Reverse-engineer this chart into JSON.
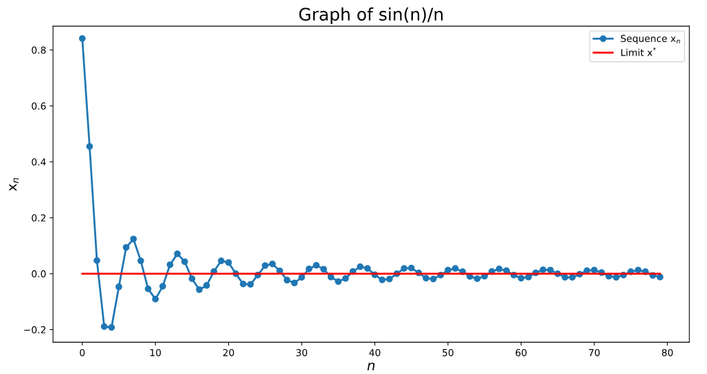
{
  "chart_data": {
    "type": "line",
    "title": "Graph of sin(n)/n",
    "xlabel": "n",
    "ylabel": "x$_{n}$",
    "x": [
      0,
      1,
      2,
      3,
      4,
      5,
      6,
      7,
      8,
      9,
      10,
      11,
      12,
      13,
      14,
      15,
      16,
      17,
      18,
      19,
      20,
      21,
      22,
      23,
      24,
      25,
      26,
      27,
      28,
      29,
      30,
      31,
      32,
      33,
      34,
      35,
      36,
      37,
      38,
      39,
      40,
      41,
      42,
      43,
      44,
      45,
      46,
      47,
      48,
      49,
      50,
      51,
      52,
      53,
      54,
      55,
      56,
      57,
      58,
      59,
      60,
      61,
      62,
      63,
      64,
      65,
      66,
      67,
      68,
      69,
      70,
      71,
      72,
      73,
      74,
      75,
      76,
      77,
      78,
      79
    ],
    "series": [
      {
        "name": "Sequence x$_{n}$",
        "color": "#1f77b4",
        "marker": "circle",
        "values": [
          0.841,
          0.455,
          0.047,
          -0.189,
          -0.192,
          -0.047,
          0.094,
          0.124,
          0.046,
          -0.054,
          -0.091,
          -0.045,
          0.032,
          0.071,
          0.043,
          -0.018,
          -0.057,
          -0.042,
          0.008,
          0.046,
          0.04,
          0.0,
          -0.037,
          -0.038,
          -0.005,
          0.029,
          0.035,
          0.01,
          -0.023,
          -0.033,
          -0.013,
          0.017,
          0.03,
          0.016,
          -0.012,
          -0.028,
          -0.017,
          0.008,
          0.025,
          0.019,
          -0.004,
          -0.022,
          -0.019,
          0.0,
          0.019,
          0.02,
          0.003,
          -0.016,
          -0.019,
          -0.005,
          0.013,
          0.019,
          0.007,
          -0.01,
          -0.018,
          -0.009,
          0.008,
          0.017,
          0.011,
          -0.005,
          -0.016,
          -0.012,
          0.003,
          0.014,
          0.013,
          0.0,
          -0.013,
          -0.013,
          -0.002,
          0.011,
          0.013,
          0.004,
          -0.009,
          -0.013,
          -0.005,
          0.007,
          0.013,
          0.007,
          -0.006,
          -0.012
        ]
      },
      {
        "name": "Limit x$^{*}$",
        "color": "#ff0000",
        "marker": "none",
        "x": [
          0,
          79
        ],
        "values": [
          0,
          0
        ]
      }
    ],
    "xlim": [
      -4,
      83
    ],
    "ylim": [
      -0.245,
      0.885
    ],
    "xticks": [
      0,
      10,
      20,
      30,
      40,
      50,
      60,
      70,
      80
    ],
    "yticks": [
      {
        "value": -0.2,
        "label": "−0.2"
      },
      {
        "value": 0.0,
        "label": "0.0"
      },
      {
        "value": 0.2,
        "label": "0.2"
      },
      {
        "value": 0.4,
        "label": "0.4"
      },
      {
        "value": 0.6,
        "label": "0.6"
      },
      {
        "value": 0.8,
        "label": "0.8"
      }
    ],
    "legend": "top right",
    "grid": false
  }
}
